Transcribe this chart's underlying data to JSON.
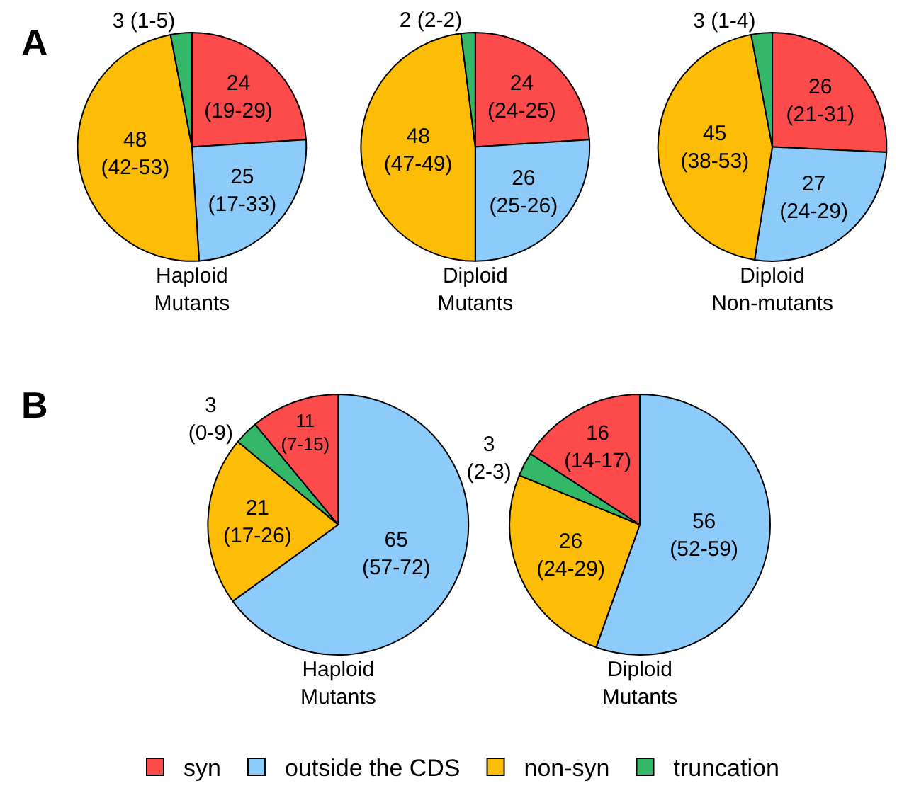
{
  "chart_data": [
    {
      "type": "pie",
      "title": "Haploid\nMutants",
      "annotations": [
        "A"
      ],
      "legend": "bottom",
      "categories": [
        "syn",
        "outside the CDS",
        "non-syn",
        "truncation"
      ],
      "values": [
        24,
        25,
        48,
        3
      ],
      "colors": [
        "#fd4a4a",
        "#8ccbfa",
        "#fdbd06",
        "#35b76a"
      ],
      "value_labels": [
        "24\n(19-29)",
        "25\n(17-33)",
        "48\n(42-53)",
        "3 (1-5)"
      ]
    },
    {
      "type": "pie",
      "title": "Diploid\nMutants",
      "categories": [
        null,
        null,
        null,
        null
      ],
      "values": [
        24,
        26,
        48,
        2
      ],
      "colors": [
        "#fd4a4a",
        "#8ccbfa",
        "#fdbd06",
        "#35b76a"
      ],
      "value_labels": [
        "24\n(24-25)",
        "26\n(25-26)",
        "48\n(47-49)",
        "2 (2-2)"
      ]
    },
    {
      "type": "pie",
      "title": "Diploid\nNon-mutants",
      "categories": [
        null,
        null,
        null,
        null
      ],
      "values": [
        26,
        27,
        45,
        3
      ],
      "colors": [
        "#fd4a4a",
        "#8ccbfa",
        "#fdbd06",
        "#35b76a"
      ],
      "value_labels": [
        "26\n(21-31)",
        "27\n(24-29)",
        "45\n(38-53)",
        "3 (1-4)"
      ]
    },
    {
      "type": "pie",
      "title": "Haploid\nMutants",
      "annotations": [
        "B"
      ],
      "categories": [
        null,
        null,
        null,
        null
      ],
      "values": [
        65,
        21,
        3,
        11
      ],
      "colors": [
        "#8ccbfa",
        "#fdbd06",
        "#35b76a",
        "#fd4a4a"
      ],
      "value_labels": [
        "65\n(57-72)",
        "21\n(17-26)",
        "3\n(0-9)",
        "11\n(7-15)"
      ]
    },
    {
      "type": "pie",
      "title": "Diploid\nMutants",
      "categories": [
        null,
        null,
        null,
        null
      ],
      "values": [
        56,
        26,
        3,
        16
      ],
      "colors": [
        "#8ccbfa",
        "#fdbd06",
        "#35b76a",
        "#fd4a4a"
      ],
      "value_labels": [
        "56\n(52-59)",
        "26\n(24-29)",
        "3\n(2-3)",
        "16\n(14-17)"
      ]
    }
  ]
}
